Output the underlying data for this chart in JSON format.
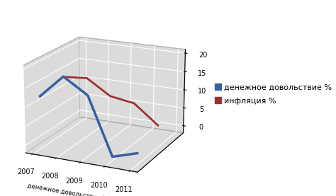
{
  "years": [
    "2007",
    "2008",
    "2009",
    "2010",
    "2011"
  ],
  "denezhnoe": [
    12,
    18,
    14,
    -1,
    1
  ],
  "inflation": [
    13.5,
    14,
    10,
    9,
    4
  ],
  "xlabel": "денежное довольствие %",
  "legend_denezhnoe": "денежное довольствие %",
  "legend_inflation": "инфляция %",
  "ylim": [
    -2,
    21
  ],
  "yticks": [
    0,
    5,
    10,
    15,
    20
  ],
  "color_denezhnoe": "#3a5fa0",
  "color_inflation": "#a03030",
  "bg_panel_color": "#d8d8d8",
  "bg_floor_color": "#e8e8e8",
  "grid_color": "#ffffff",
  "legend_fontsize": 8,
  "tick_fontsize": 7,
  "depth_blue": 0.0,
  "depth_red": 0.6,
  "elev": 18,
  "azim": -65
}
